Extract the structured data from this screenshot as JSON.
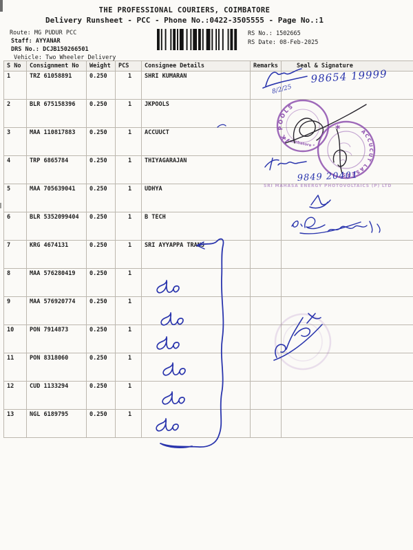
{
  "page": {
    "title": "THE PROFESSIONAL COURIERS, COIMBATORE",
    "subtitle": "Delivery Runsheet - PCC - Phone No.:0422-3505555 - Page No.:1"
  },
  "meta": {
    "route_label": "Route:",
    "route": "MG PUDUR PCC",
    "staff_label": "Staff:",
    "staff": "AYYANAR",
    "drs_label": "DRS No.:",
    "drs": "DCJB150266501",
    "vehicle_label": "Vehicle:",
    "vehicle": "Two Wheeler Delivery",
    "rs_no_label": "RS No.:",
    "rs_no": "1502665",
    "rs_date_label": "RS Date:",
    "rs_date": "08-Feb-2025"
  },
  "table": {
    "headers": [
      "S No",
      "Consignment No",
      "Weight",
      "PCS",
      "Consignee Details",
      "Remarks",
      "Seal & Signature"
    ],
    "rows": [
      {
        "s_no": "1",
        "consignment_no": "TRZ 61058891",
        "weight": "0.250",
        "pcs": "1",
        "consignee": "SHRI KUMARAN"
      },
      {
        "s_no": "2",
        "consignment_no": "BLR 675158396",
        "weight": "0.250",
        "pcs": "1",
        "consignee": "JKPOOLS"
      },
      {
        "s_no": "3",
        "consignment_no": "MAA 110817883",
        "weight": "0.250",
        "pcs": "1",
        "consignee": "ACCUUCT"
      },
      {
        "s_no": "4",
        "consignment_no": "TRP 6865784",
        "weight": "0.250",
        "pcs": "1",
        "consignee": "THIYAGARAJAN"
      },
      {
        "s_no": "5",
        "consignment_no": "MAA 705639041",
        "weight": "0.250",
        "pcs": "1",
        "consignee": "UDHYA"
      },
      {
        "s_no": "6",
        "consignment_no": "BLR 5352099404",
        "weight": "0.250",
        "pcs": "1",
        "consignee": "B TECH"
      },
      {
        "s_no": "7",
        "consignment_no": "KRG 4674131",
        "weight": "0.250",
        "pcs": "1",
        "consignee": "SRI AYYAPPA TRANS"
      },
      {
        "s_no": "8",
        "consignment_no": "MAA 576280419",
        "weight": "0.250",
        "pcs": "1",
        "consignee": ""
      },
      {
        "s_no": "9",
        "consignment_no": "MAA 576920774",
        "weight": "0.250",
        "pcs": "1",
        "consignee": ""
      },
      {
        "s_no": "10",
        "consignment_no": "PON 7914873",
        "weight": "0.250",
        "pcs": "1",
        "consignee": ""
      },
      {
        "s_no": "11",
        "consignment_no": "PON 8318060",
        "weight": "0.250",
        "pcs": "1",
        "consignee": ""
      },
      {
        "s_no": "12",
        "consignment_no": "CUD 1133294",
        "weight": "0.250",
        "pcs": "1",
        "consignee": ""
      },
      {
        "s_no": "13",
        "consignment_no": "NGL 6189795",
        "weight": "0.250",
        "pcs": "1",
        "consignee": ""
      }
    ]
  },
  "annotations": {
    "sig_row1_date": "8/2/25",
    "sig_row1_phone": "98654 19999",
    "stamp_row2_name": "JK POOLS",
    "stamp_row2_city": "* Coimbatore *",
    "stamp_row3_name": "ACCUCUT LASERS",
    "stamp_row3_star": "*",
    "sig_row4_phone": "9849 20401",
    "faint_company_line": "SRI MAHASA ENERGY PHOTOVOLTAICS (P) LTD",
    "ditto_mark": "do"
  },
  "colors": {
    "ink_blue": "#2a35ad",
    "stamp_purple": "#8d4fae",
    "paper": "#fbfaf7"
  }
}
